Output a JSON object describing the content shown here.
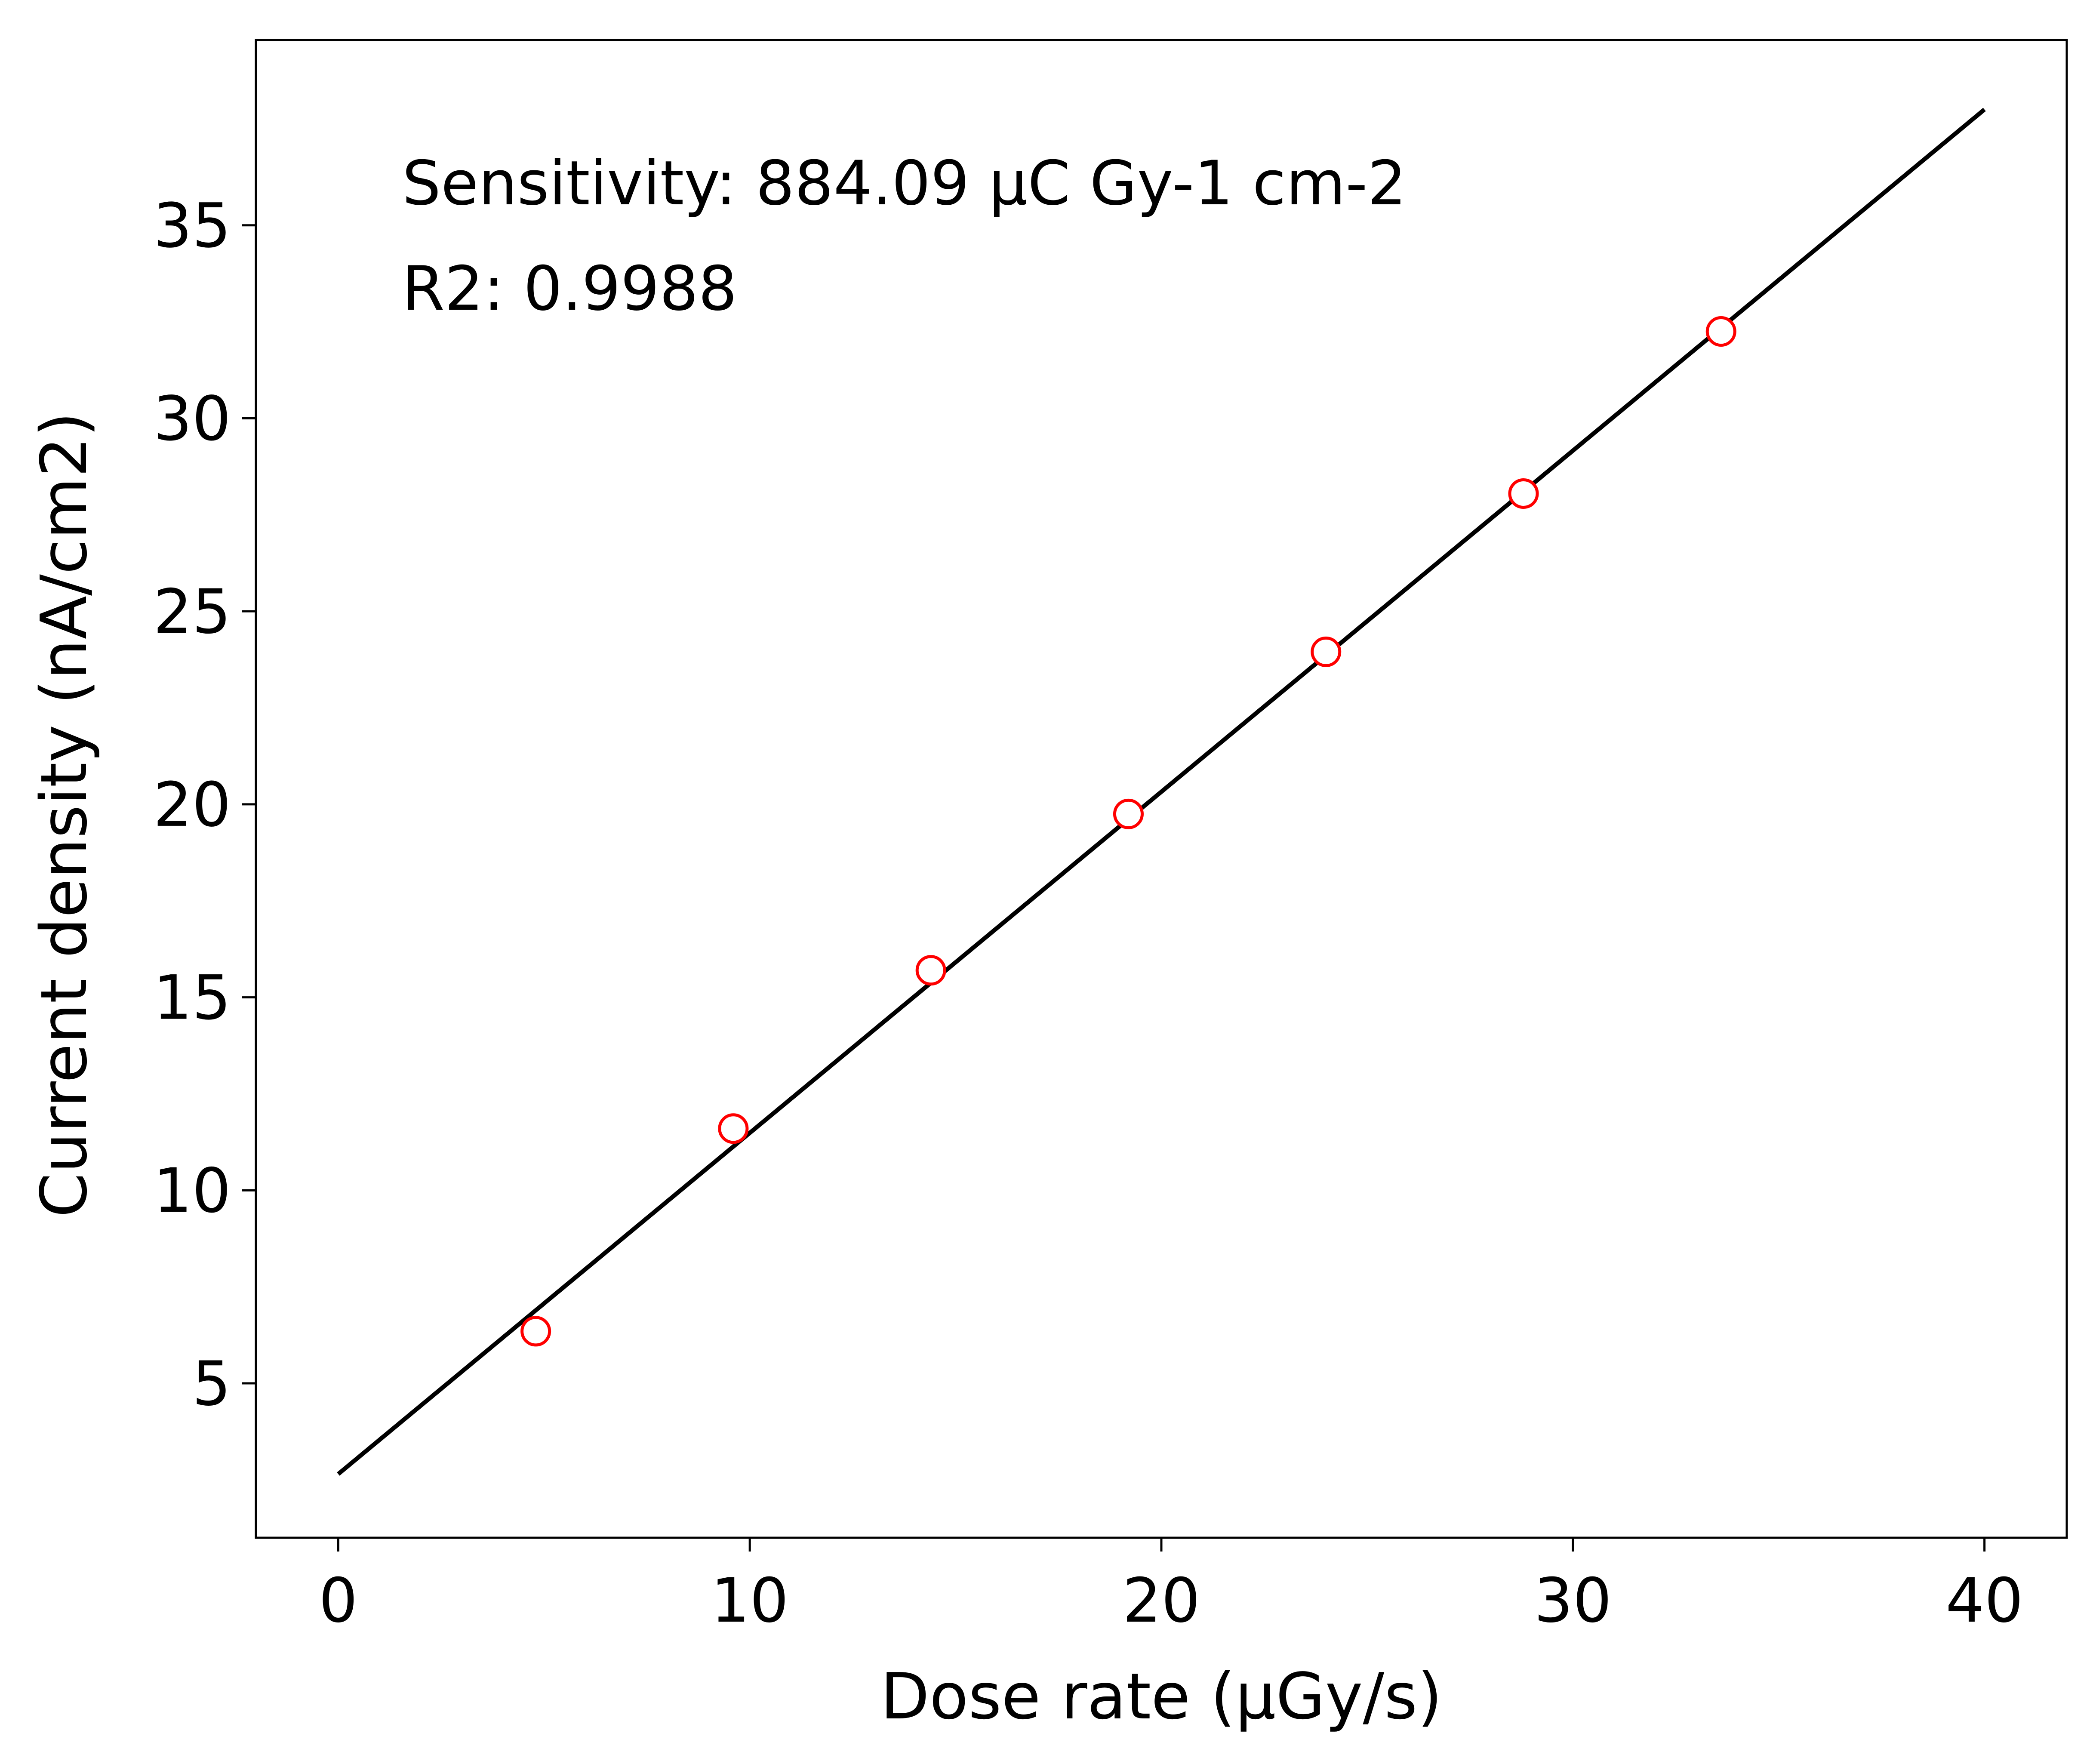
{
  "chart_data": {
    "type": "scatter",
    "xlabel": "Dose rate (µGy/s)",
    "ylabel": "Current density (nA/cm2)",
    "xlim": [
      -2,
      42
    ],
    "ylim": [
      1,
      39.8
    ],
    "xticks": [
      0,
      10,
      20,
      30,
      40
    ],
    "yticks": [
      5,
      10,
      15,
      20,
      25,
      30,
      35
    ],
    "grid": false,
    "series": [
      {
        "kind": "points",
        "marker": "open-circle",
        "color": "#ff0000",
        "x": [
          4.8,
          9.6,
          14.4,
          19.2,
          24.0,
          28.8,
          33.6
        ],
        "y": [
          6.35,
          11.6,
          15.7,
          19.75,
          23.95,
          28.05,
          32.25
        ]
      },
      {
        "kind": "fit-line",
        "color": "#000000",
        "x": [
          0,
          40
        ],
        "y": [
          2.65,
          38.0
        ]
      }
    ],
    "annotations": [
      "Sensitivity: 884.09 µC Gy-1 cm-2",
      "R2: 0.9988"
    ]
  }
}
